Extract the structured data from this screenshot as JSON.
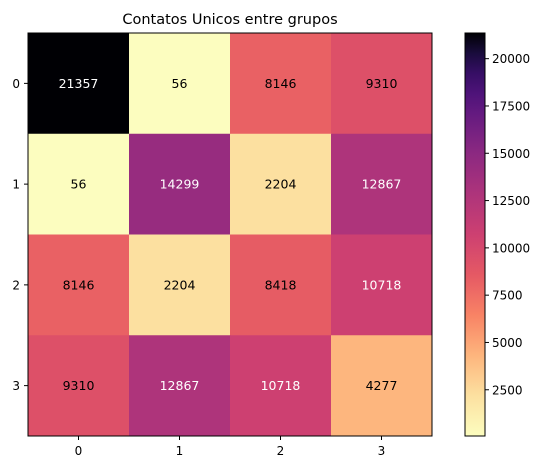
{
  "chart_data": {
    "type": "heatmap",
    "title": "Contatos Unicos entre grupos",
    "xlabel": "",
    "ylabel": "",
    "x_categories": [
      "0",
      "1",
      "2",
      "3"
    ],
    "y_categories": [
      "0",
      "1",
      "2",
      "3"
    ],
    "values": [
      [
        21357,
        56,
        8146,
        9310
      ],
      [
        56,
        14299,
        2204,
        12867
      ],
      [
        8146,
        2204,
        8418,
        10718
      ],
      [
        9310,
        12867,
        10718,
        4277
      ]
    ],
    "colormap": "magma_r",
    "value_range": [
      56,
      21357
    ],
    "colorbar_ticks": [
      "2500",
      "5000",
      "7500",
      "10000",
      "12500",
      "15000",
      "17500",
      "20000"
    ],
    "colorbar_tick_values": [
      2500,
      5000,
      7500,
      10000,
      12500,
      15000,
      17500,
      20000
    ],
    "annotation_colors": {
      "dark": "#000000",
      "light": "#ffffff"
    },
    "grid": false,
    "legend": "colorbar-right"
  }
}
